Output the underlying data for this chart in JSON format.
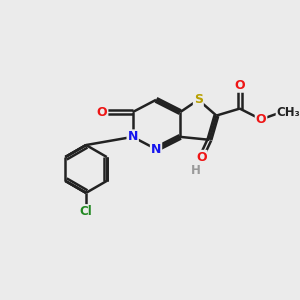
{
  "background": "#ebebeb",
  "bond_color": "#222222",
  "lw": 1.8,
  "dbo": 0.06,
  "colors": {
    "N": "#1515ee",
    "S": "#b8a000",
    "O": "#ee1515",
    "Cl": "#208820",
    "H": "#999999",
    "C": "#222222"
  },
  "figsize": [
    3.0,
    3.0
  ],
  "dpi": 100,
  "xlim": [
    0,
    10
  ],
  "ylim": [
    0,
    10
  ]
}
